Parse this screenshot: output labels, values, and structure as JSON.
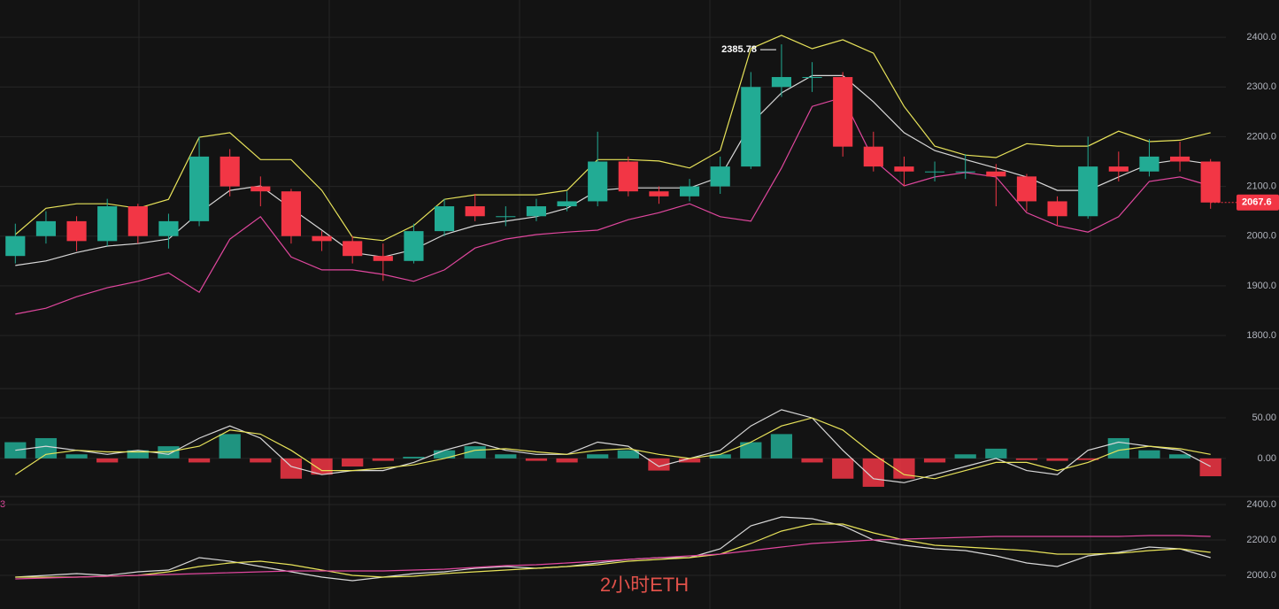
{
  "chart_data": [
    {
      "type": "candlestick",
      "open": [
        1960,
        2000,
        2030,
        1990,
        2060,
        2000,
        2030,
        2160,
        2100,
        2090,
        2000,
        1990,
        1960,
        1950,
        2010,
        2060,
        2040,
        2040,
        2060,
        2070,
        2150,
        2090,
        2080,
        2100,
        2140,
        2300,
        2320,
        2320,
        2180,
        2140,
        2130,
        2130,
        2130,
        2120,
        2070,
        2040,
        2140,
        2130,
        2160,
        2150
      ],
      "high": [
        2025,
        2050,
        2040,
        2075,
        2065,
        2045,
        2200,
        2175,
        2120,
        2095,
        2010,
        2000,
        1985,
        2025,
        2075,
        2085,
        2060,
        2075,
        2090,
        2210,
        2160,
        2100,
        2115,
        2160,
        2330,
        2385.78,
        2350,
        2330,
        2210,
        2160,
        2150,
        2165,
        2145,
        2125,
        2080,
        2200,
        2170,
        2195,
        2190,
        2155
      ],
      "low": [
        1945,
        1985,
        1970,
        1980,
        1985,
        1975,
        2020,
        2080,
        2060,
        1985,
        1970,
        1945,
        1910,
        1945,
        2000,
        2030,
        2020,
        2030,
        2050,
        2060,
        2080,
        2065,
        2070,
        2085,
        2135,
        2280,
        2290,
        2160,
        2130,
        2100,
        2110,
        2115,
        2060,
        2050,
        2020,
        2035,
        2110,
        2120,
        2130,
        2055
      ],
      "close": [
        2000,
        2030,
        1990,
        2060,
        2000,
        2030,
        2160,
        2100,
        2090,
        2000,
        1990,
        1960,
        1950,
        2010,
        2060,
        2040,
        2040,
        2060,
        2070,
        2150,
        2090,
        2080,
        2100,
        2140,
        2300,
        2320,
        2320,
        2180,
        2140,
        2130,
        2130,
        2130,
        2120,
        2070,
        2040,
        2140,
        2130,
        2160,
        2150,
        2067.6
      ],
      "up_color": "#22ab94",
      "down_color": "#f23645",
      "series": [
        {
          "color": "#e8e35a",
          "values": [
            2003,
            2056,
            2065,
            2065,
            2056,
            2074,
            2199,
            2208,
            2154,
            2154,
            2092,
            1998,
            1991,
            2021,
            2074,
            2083,
            2083,
            2083,
            2092,
            2154,
            2154,
            2151,
            2137,
            2172,
            2377,
            2404,
            2377,
            2395,
            2368,
            2261,
            2181,
            2163,
            2158,
            2186,
            2181,
            2181,
            2211,
            2190,
            2193,
            2208
          ]
        },
        {
          "color": "#d8d8d8",
          "values": [
            1941,
            1950,
            1967,
            1980,
            1985,
            1994,
            2047,
            2092,
            2101,
            2056,
            2012,
            1967,
            1958,
            1973,
            2003,
            2021,
            2030,
            2039,
            2056,
            2092,
            2097,
            2097,
            2097,
            2119,
            2226,
            2288,
            2323,
            2323,
            2270,
            2208,
            2172,
            2154,
            2137,
            2119,
            2092,
            2092,
            2119,
            2145,
            2154,
            2145
          ]
        },
        {
          "color": "#e0479e",
          "values": [
            1843,
            1855,
            1878,
            1896,
            1909,
            1926,
            1887,
            1994,
            2039,
            1958,
            1932,
            1932,
            1923,
            1909,
            1932,
            1976,
            1994,
            2003,
            2008,
            2012,
            2033,
            2047,
            2065,
            2039,
            2030,
            2137,
            2261,
            2279,
            2154,
            2101,
            2119,
            2128,
            2119,
            2047,
            2021,
            2008,
            2039,
            2110,
            2119,
            2101
          ]
        }
      ],
      "ylim": [
        1695,
        2475
      ],
      "yticks": [
        {
          "value": 2400,
          "label": "2400.0"
        },
        {
          "value": 2300,
          "label": "2300.0"
        },
        {
          "value": 2200,
          "label": "2200.0"
        },
        {
          "value": 2100,
          "label": "2100.0"
        },
        {
          "value": 2000,
          "label": "2000.0"
        },
        {
          "value": 1900,
          "label": "1900.0"
        },
        {
          "value": 1800,
          "label": "1800.0"
        }
      ],
      "grid": true
    },
    {
      "type": "macd",
      "values": [
        20,
        25,
        5,
        -5,
        10,
        15,
        -5,
        30,
        -5,
        -25,
        -20,
        -10,
        -3,
        2,
        10,
        15,
        5,
        -3,
        -5,
        5,
        10,
        -15,
        -5,
        5,
        20,
        30,
        -5,
        -25,
        -35,
        -25,
        -5,
        5,
        12,
        -2,
        -3,
        -2,
        25,
        10,
        5,
        -22
      ],
      "up_color": "#22ab94",
      "down_color": "#f23645",
      "series": [
        {
          "color": "#d8d8d8",
          "values": [
            10,
            15,
            10,
            5,
            10,
            5,
            25,
            40,
            25,
            -10,
            -20,
            -15,
            -15,
            -5,
            10,
            20,
            10,
            5,
            5,
            20,
            15,
            -10,
            0,
            10,
            40,
            60,
            50,
            10,
            -25,
            -30,
            -20,
            -10,
            0,
            -15,
            -20,
            10,
            20,
            15,
            10,
            -10
          ]
        },
        {
          "color": "#e8e35a",
          "values": [
            -20,
            5,
            10,
            8,
            8,
            8,
            15,
            35,
            30,
            10,
            -15,
            -15,
            -12,
            -8,
            0,
            10,
            12,
            8,
            5,
            10,
            12,
            5,
            0,
            5,
            20,
            40,
            50,
            35,
            5,
            -20,
            -25,
            -15,
            -5,
            -5,
            -15,
            -5,
            10,
            15,
            12,
            5
          ]
        }
      ],
      "ylim": [
        -46,
        85
      ],
      "yticks": [
        {
          "value": 50,
          "label": "50.00"
        },
        {
          "value": 0,
          "label": "0.00"
        }
      ],
      "grid": true
    },
    {
      "type": "line",
      "legend_text": "3",
      "watermark": "2小时ETH",
      "series": [
        {
          "color": "#d8d8d8",
          "values": [
            1990,
            2000,
            2010,
            2000,
            2020,
            2030,
            2100,
            2080,
            2050,
            2020,
            1990,
            1970,
            1990,
            2010,
            2020,
            2040,
            2050,
            2040,
            2050,
            2070,
            2090,
            2100,
            2100,
            2150,
            2280,
            2330,
            2320,
            2280,
            2200,
            2170,
            2150,
            2140,
            2110,
            2070,
            2050,
            2110,
            2130,
            2160,
            2150,
            2100
          ]
        },
        {
          "color": "#e8e35a",
          "values": [
            1990,
            1990,
            1990,
            1995,
            2000,
            2020,
            2050,
            2070,
            2080,
            2060,
            2030,
            2000,
            1990,
            1995,
            2010,
            2020,
            2030,
            2040,
            2050,
            2060,
            2080,
            2090,
            2100,
            2120,
            2180,
            2250,
            2290,
            2290,
            2240,
            2200,
            2170,
            2160,
            2150,
            2140,
            2120,
            2120,
            2125,
            2140,
            2150,
            2130
          ]
        },
        {
          "color": "#e0479e",
          "values": [
            1980,
            1985,
            1990,
            1995,
            2000,
            2005,
            2010,
            2015,
            2020,
            2025,
            2025,
            2025,
            2025,
            2030,
            2035,
            2045,
            2055,
            2060,
            2070,
            2080,
            2090,
            2100,
            2110,
            2120,
            2140,
            2160,
            2180,
            2190,
            2200,
            2205,
            2210,
            2215,
            2220,
            2220,
            2220,
            2220,
            2220,
            2225,
            2225,
            2220
          ]
        }
      ],
      "ylim": [
        1810,
        2440
      ],
      "yticks": [
        {
          "value": 2400,
          "label": "2400.0"
        },
        {
          "value": 2200,
          "label": "2200.0"
        },
        {
          "value": 2000,
          "label": "2000.0"
        }
      ],
      "grid": true
    }
  ]
}
